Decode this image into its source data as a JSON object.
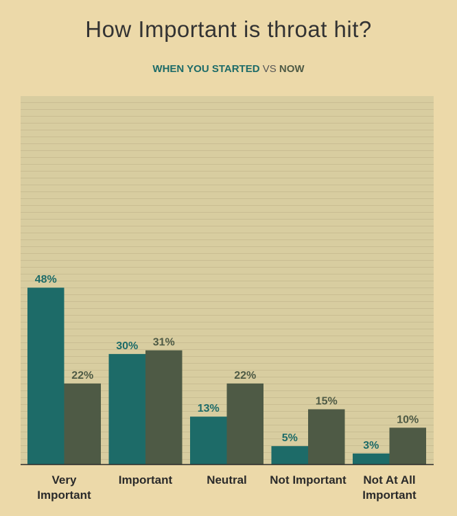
{
  "chart_data": {
    "type": "bar",
    "title": "How Important is throat hit?",
    "legend_separator": "VS",
    "categories": [
      "Very Important",
      "Important",
      "Neutral",
      "Not Important",
      "Not At All Important"
    ],
    "series": [
      {
        "name": "WHEN YOU STARTED",
        "color": "#1d6b68",
        "values": [
          48,
          30,
          13,
          5,
          3
        ],
        "value_labels": [
          "48%",
          "30%",
          "13%",
          "5%",
          "3%"
        ]
      },
      {
        "name": "NOW",
        "color": "#4e5a45",
        "values": [
          22,
          31,
          22,
          15,
          10
        ],
        "value_labels": [
          "22%",
          "31%",
          "22%",
          "15%",
          "10%"
        ]
      }
    ],
    "ylim": [
      0,
      100
    ]
  }
}
